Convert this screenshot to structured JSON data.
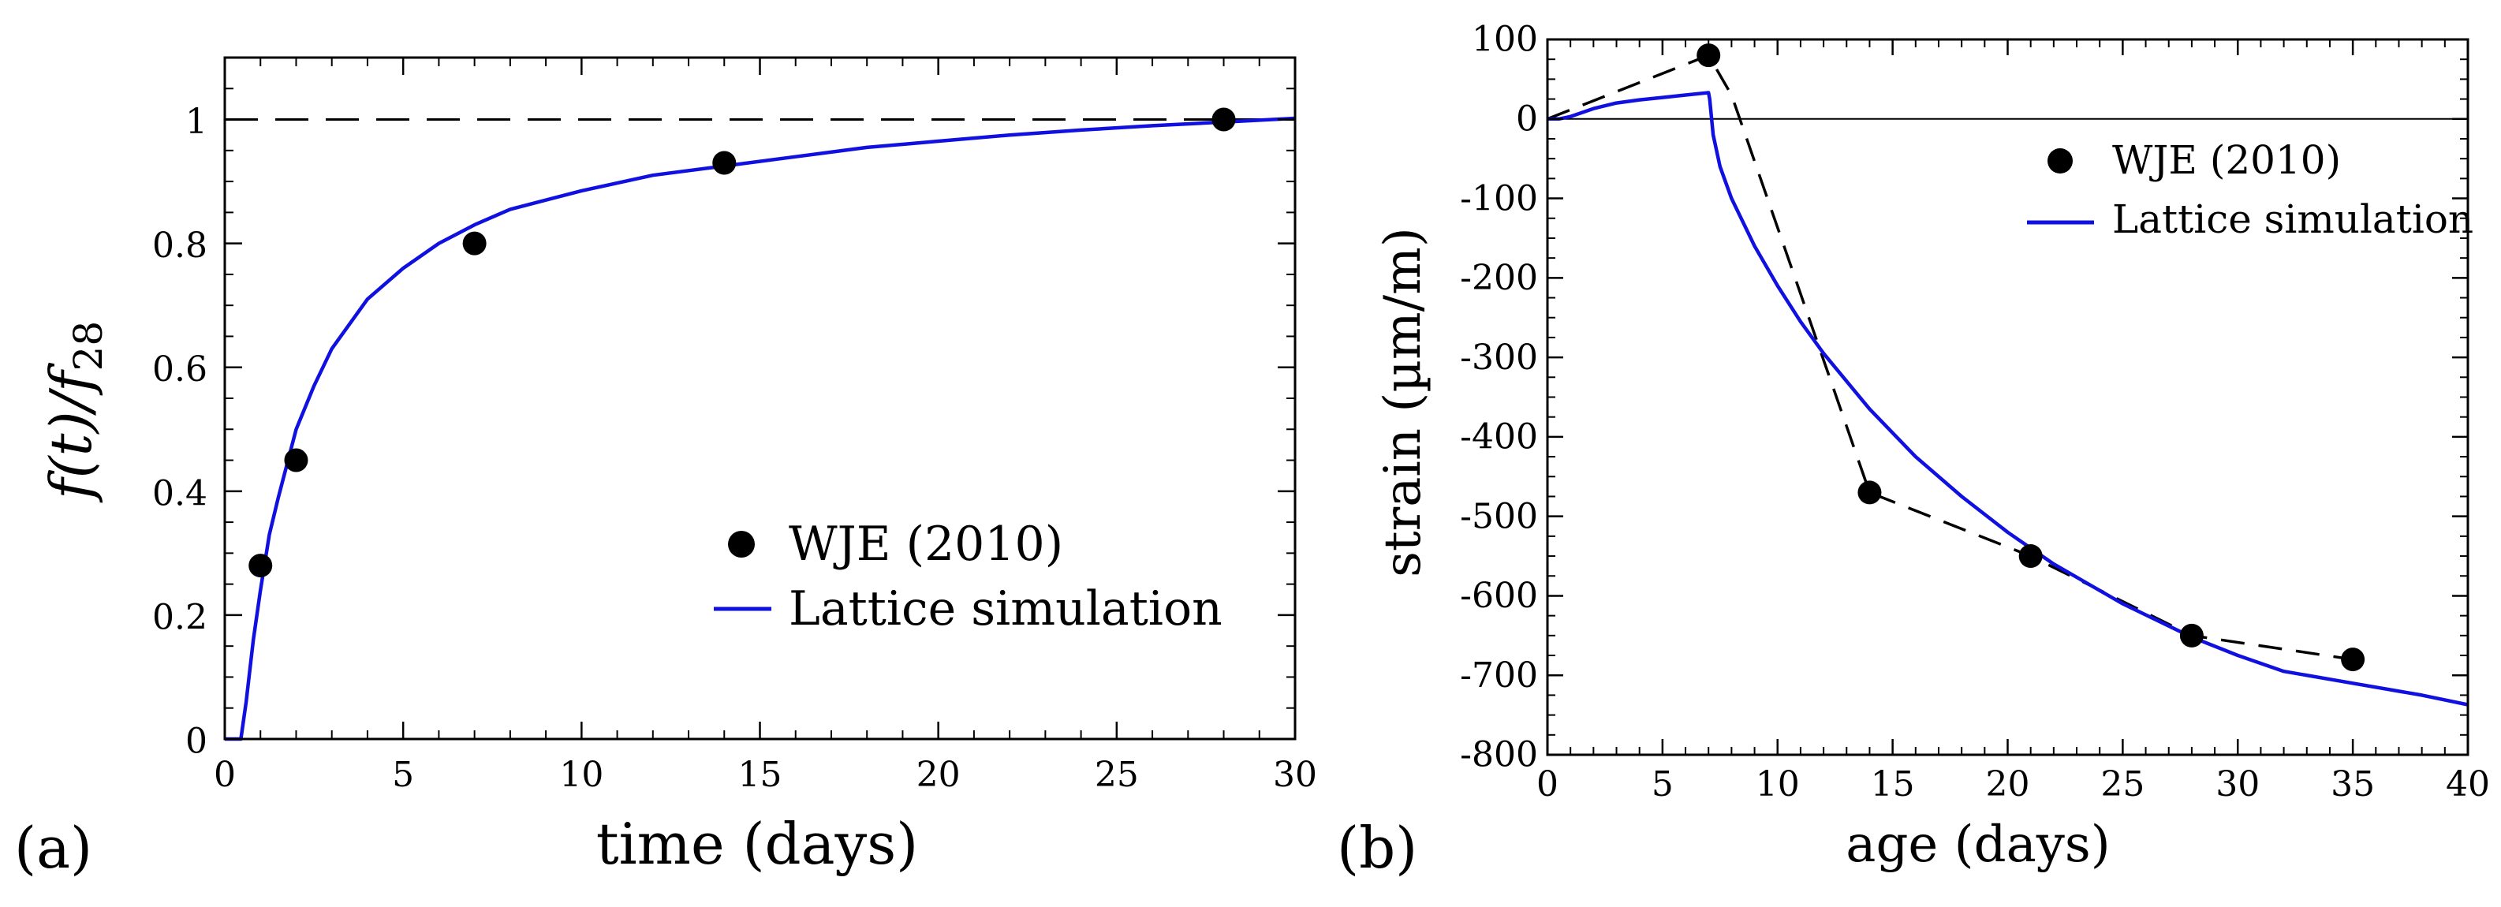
{
  "chart_data": [
    {
      "type": "line",
      "panel_label": "(a)",
      "xlabel": "time (days)",
      "ylabel": "f(t)/f",
      "ylabel_subscript": "28",
      "xlim": [
        0,
        30
      ],
      "ylim": [
        0,
        1.1
      ],
      "xticks": [
        0,
        5,
        10,
        15,
        20,
        25,
        30
      ],
      "xtick_labels": [
        "0",
        "5",
        "10",
        "15",
        "20",
        "25",
        "30"
      ],
      "yticks": [
        0,
        0.2,
        0.4,
        0.6,
        0.8,
        1
      ],
      "ytick_labels": [
        "0",
        "0.2",
        "0.4",
        "0.6",
        "0.8",
        "1"
      ],
      "reference_line": {
        "y": 1,
        "style": "dashed",
        "color": "#000000"
      },
      "series": [
        {
          "name": "WJE (2010)",
          "kind": "scatter",
          "color": "#000000",
          "x": [
            1,
            2,
            7,
            14,
            28
          ],
          "y": [
            0.28,
            0.45,
            0.8,
            0.93,
            1.0
          ]
        },
        {
          "name": "Lattice simulation",
          "kind": "line",
          "color": "#1010e0",
          "x": [
            0,
            0.45,
            0.6,
            0.8,
            1.0,
            1.25,
            1.5,
            2,
            2.5,
            3,
            4,
            5,
            6,
            7,
            8,
            10,
            12,
            14,
            16,
            18,
            20,
            22,
            24,
            26,
            28,
            30
          ],
          "y": [
            0,
            0,
            0.06,
            0.16,
            0.24,
            0.33,
            0.39,
            0.5,
            0.57,
            0.63,
            0.71,
            0.76,
            0.8,
            0.83,
            0.855,
            0.885,
            0.91,
            0.925,
            0.94,
            0.955,
            0.965,
            0.975,
            0.983,
            0.99,
            0.996,
            1.002
          ]
        }
      ],
      "legend": {
        "position": "lower-right",
        "entries": [
          "WJE (2010)",
          "Lattice simulation"
        ]
      }
    },
    {
      "type": "line",
      "panel_label": "(b)",
      "xlabel": "age (days)",
      "ylabel": "strain (µm/m)",
      "xlim": [
        0,
        40
      ],
      "ylim": [
        -800,
        100
      ],
      "xticks": [
        0,
        5,
        10,
        15,
        20,
        25,
        30,
        35,
        40
      ],
      "xtick_labels": [
        "0",
        "5",
        "10",
        "15",
        "20",
        "25",
        "30",
        "35",
        "40"
      ],
      "yticks": [
        -800,
        -700,
        -600,
        -500,
        -400,
        -300,
        -200,
        -100,
        0,
        100
      ],
      "ytick_labels": [
        "-800",
        "-700",
        "-600",
        "-500",
        "-400",
        "-300",
        "-200",
        "-100",
        "0",
        "100"
      ],
      "reference_line": {
        "y": 0,
        "style": "solid",
        "color": "#000000"
      },
      "series": [
        {
          "name": "WJE (2010)",
          "kind": "scatter",
          "color": "#000000",
          "x": [
            7,
            14,
            21,
            28,
            35
          ],
          "y": [
            80,
            -470,
            -550,
            -650,
            -680
          ]
        },
        {
          "name": "WJE (2010) connecting line",
          "kind": "dashed-line",
          "color": "#000000",
          "x": [
            0,
            7,
            8,
            14,
            21,
            28,
            35
          ],
          "y": [
            0,
            80,
            30,
            -470,
            -550,
            -650,
            -680
          ]
        },
        {
          "name": "Lattice simulation",
          "kind": "line",
          "color": "#1010e0",
          "x": [
            0,
            0.5,
            1,
            1.5,
            2,
            3,
            4,
            5,
            6,
            7,
            7.05,
            7.2,
            7.5,
            8,
            9,
            10,
            11,
            12,
            14,
            16,
            18,
            20,
            22,
            25,
            28,
            30,
            32,
            35,
            38,
            40
          ],
          "y": [
            0,
            0,
            3,
            8,
            13,
            20,
            24,
            27,
            30,
            33,
            25,
            -20,
            -60,
            -100,
            -160,
            -210,
            -255,
            -295,
            -365,
            -425,
            -475,
            -520,
            -560,
            -610,
            -652,
            -675,
            -695,
            -710,
            -725,
            -737
          ]
        }
      ],
      "legend": {
        "position": "top-right",
        "entries": [
          "WJE (2010)",
          "Lattice simulation"
        ]
      }
    }
  ]
}
